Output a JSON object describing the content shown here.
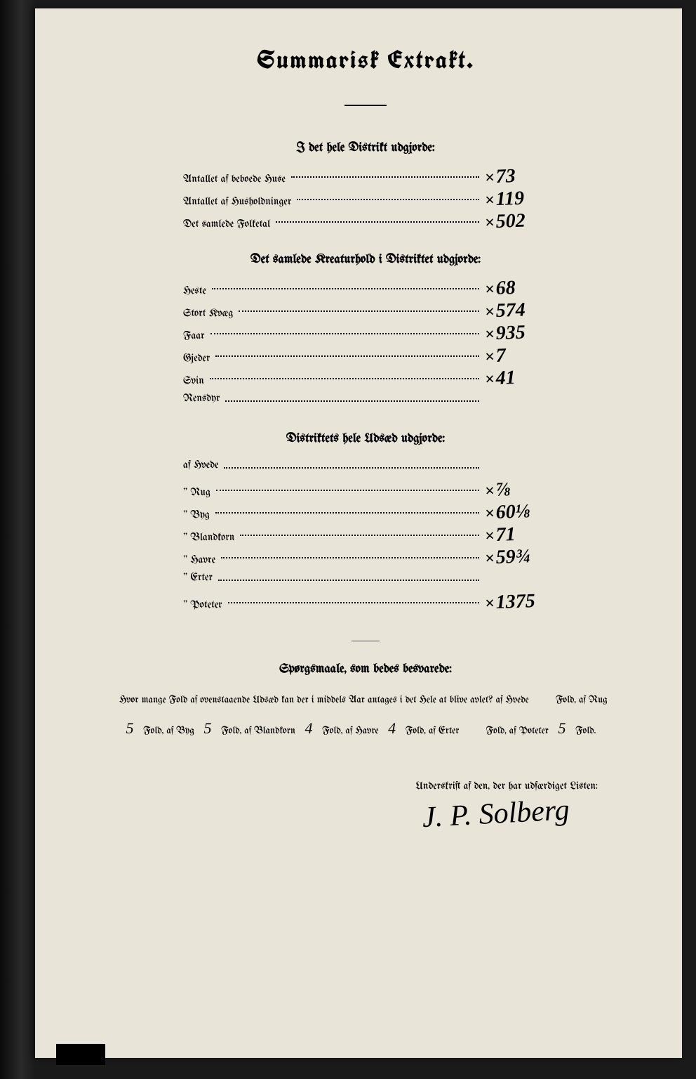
{
  "title": "Summarisk Extrakt.",
  "section1": {
    "header": "I det hele Distrikt udgjorde:",
    "rows": [
      {
        "label": "Antallet af beboede Huse",
        "value": "73"
      },
      {
        "label": "Antallet af Husholdninger",
        "value": "119"
      },
      {
        "label": "Det samlede Folketal",
        "value": "502"
      }
    ]
  },
  "section2": {
    "header": "Det samlede Kreaturhold i Distriktet udgjorde:",
    "rows": [
      {
        "label": "Heste",
        "value": "68"
      },
      {
        "label": "Stort Kvæg",
        "value": "574"
      },
      {
        "label": "Faar",
        "value": "935"
      },
      {
        "label": "Gjeder",
        "value": "7"
      },
      {
        "label": "Svin",
        "value": "41"
      },
      {
        "label": "Rensdyr",
        "value": ""
      }
    ]
  },
  "section3": {
    "header": "Distriktets hele Udsæd udgjorde:",
    "rows": [
      {
        "label": "af Hvede",
        "value": ""
      },
      {
        "label": "\" Rug",
        "value": "⅞"
      },
      {
        "label": "\" Byg",
        "value": "60⅛"
      },
      {
        "label": "\" Blandkorn",
        "value": "71"
      },
      {
        "label": "\" Havre",
        "value": "59¾"
      },
      {
        "label": "\" Erter",
        "value": ""
      },
      {
        "label": "\" Poteter",
        "value": "1375"
      }
    ]
  },
  "question": {
    "header": "Spørgsmaale, som bedes besvarede:",
    "text_parts": {
      "intro": "Hvor mange Fold af ovenstaaende Udsæd kan der i middels Aar antages i det Hele at blive avlet? af Hvede",
      "fold": "Fold,",
      "af_rug": "af Rug",
      "fold_af_byg": "Fold, af Byg",
      "fold_af_blandkorn": "Fold, af Blandkorn",
      "fold_af_havre": "Fold, af Havre",
      "fold_af_erter": "Fold, af Erter",
      "af_poteter": "af Poteter",
      "fold_end": "Fold."
    },
    "values": {
      "hvede": "",
      "rug": "5",
      "byg": "5",
      "blandkorn": "4",
      "havre": "4",
      "erter": "",
      "poteter": "5"
    }
  },
  "signature": {
    "label": "Underskrift af den, der har udfærdiget Listen:",
    "name": "J. P. Solberg"
  },
  "colors": {
    "page_bg": "#e8e4d8",
    "text": "#000000",
    "frame": "#1a1a1a"
  }
}
